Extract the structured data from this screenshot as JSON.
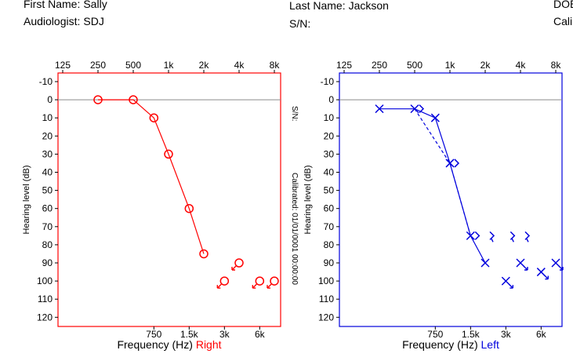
{
  "patient": {
    "first_name_label": "First Name:",
    "first_name": "Sally",
    "audiologist_label": "Audiologist:",
    "audiologist": "SDJ",
    "last_name_label": "Last Name:",
    "last_name": "Jackson",
    "sn_label": "S/N:",
    "sn": "",
    "dob_partial": "DOE",
    "cal_partial": "Cali"
  },
  "side_text": {
    "sn": "S/N:",
    "calibrated": "Calibrated: 01/01/0001 00:00:00"
  },
  "chart_data": [
    {
      "type": "line",
      "ear": "Right",
      "color": "#ff0000",
      "xlabel_prefix": "Frequency (Hz)",
      "xlabel_ear": "Right",
      "ylabel": "Hearing level (dB)",
      "x_scale": "log",
      "top_tick_labels": [
        "125",
        "250",
        "500",
        "1k",
        "2k",
        "4k",
        "8k"
      ],
      "bottom_tick_labels": [
        "750",
        "1.5k",
        "3k",
        "6k"
      ],
      "y_tick_labels": [
        "-10",
        "0",
        "10",
        "20",
        "30",
        "40",
        "50",
        "60",
        "70",
        "80",
        "90",
        "100",
        "110",
        "120"
      ],
      "ylim": [
        -10,
        120
      ],
      "series": [
        {
          "symbol": "circle",
          "connected": true,
          "points": [
            {
              "x": 250,
              "y": 0
            },
            {
              "x": 500,
              "y": 0
            },
            {
              "x": 750,
              "y": 10
            },
            {
              "x": 1000,
              "y": 30
            },
            {
              "x": 1500,
              "y": 60
            },
            {
              "x": 2000,
              "y": 85
            }
          ]
        },
        {
          "symbol": "circle-no-response",
          "connected": false,
          "points": [
            {
              "x": 3000,
              "y": 100
            },
            {
              "x": 4000,
              "y": 90
            },
            {
              "x": 6000,
              "y": 100
            },
            {
              "x": 8000,
              "y": 100
            }
          ]
        }
      ]
    },
    {
      "type": "line",
      "ear": "Left",
      "color": "#0000dd",
      "xlabel_prefix": "Frequency (Hz)",
      "xlabel_ear": "Left",
      "ylabel": "Hearing level (dB)",
      "x_scale": "log",
      "top_tick_labels": [
        "125",
        "250",
        "500",
        "1k",
        "2k",
        "4k",
        "8k"
      ],
      "bottom_tick_labels": [
        "750",
        "1.5k",
        "3k",
        "6k"
      ],
      "y_tick_labels": [
        "-10",
        "0",
        "10",
        "20",
        "30",
        "40",
        "50",
        "60",
        "70",
        "80",
        "90",
        "100",
        "110",
        "120"
      ],
      "ylim": [
        -10,
        120
      ],
      "series": [
        {
          "symbol": "cross",
          "connected": true,
          "points": [
            {
              "x": 250,
              "y": 5
            },
            {
              "x": 500,
              "y": 5
            },
            {
              "x": 750,
              "y": 10
            },
            {
              "x": 1000,
              "y": 35
            },
            {
              "x": 1500,
              "y": 75
            },
            {
              "x": 2000,
              "y": 90
            }
          ]
        },
        {
          "symbol": "cross-no-response",
          "connected": false,
          "points": [
            {
              "x": 3000,
              "y": 100
            },
            {
              "x": 4000,
              "y": 90
            },
            {
              "x": 6000,
              "y": 95
            },
            {
              "x": 8000,
              "y": 90
            }
          ]
        },
        {
          "symbol": "bone-bracket",
          "connected": true,
          "dashed": true,
          "points": [
            {
              "x": 500,
              "y": 5
            },
            {
              "x": 1000,
              "y": 35
            },
            {
              "x": 1500,
              "y": 75
            }
          ]
        },
        {
          "symbol": "bone-bracket-no-response",
          "connected": false,
          "points": [
            {
              "x": 2000,
              "y": 75
            },
            {
              "x": 3000,
              "y": 75
            },
            {
              "x": 4000,
              "y": 75
            }
          ]
        }
      ]
    }
  ]
}
